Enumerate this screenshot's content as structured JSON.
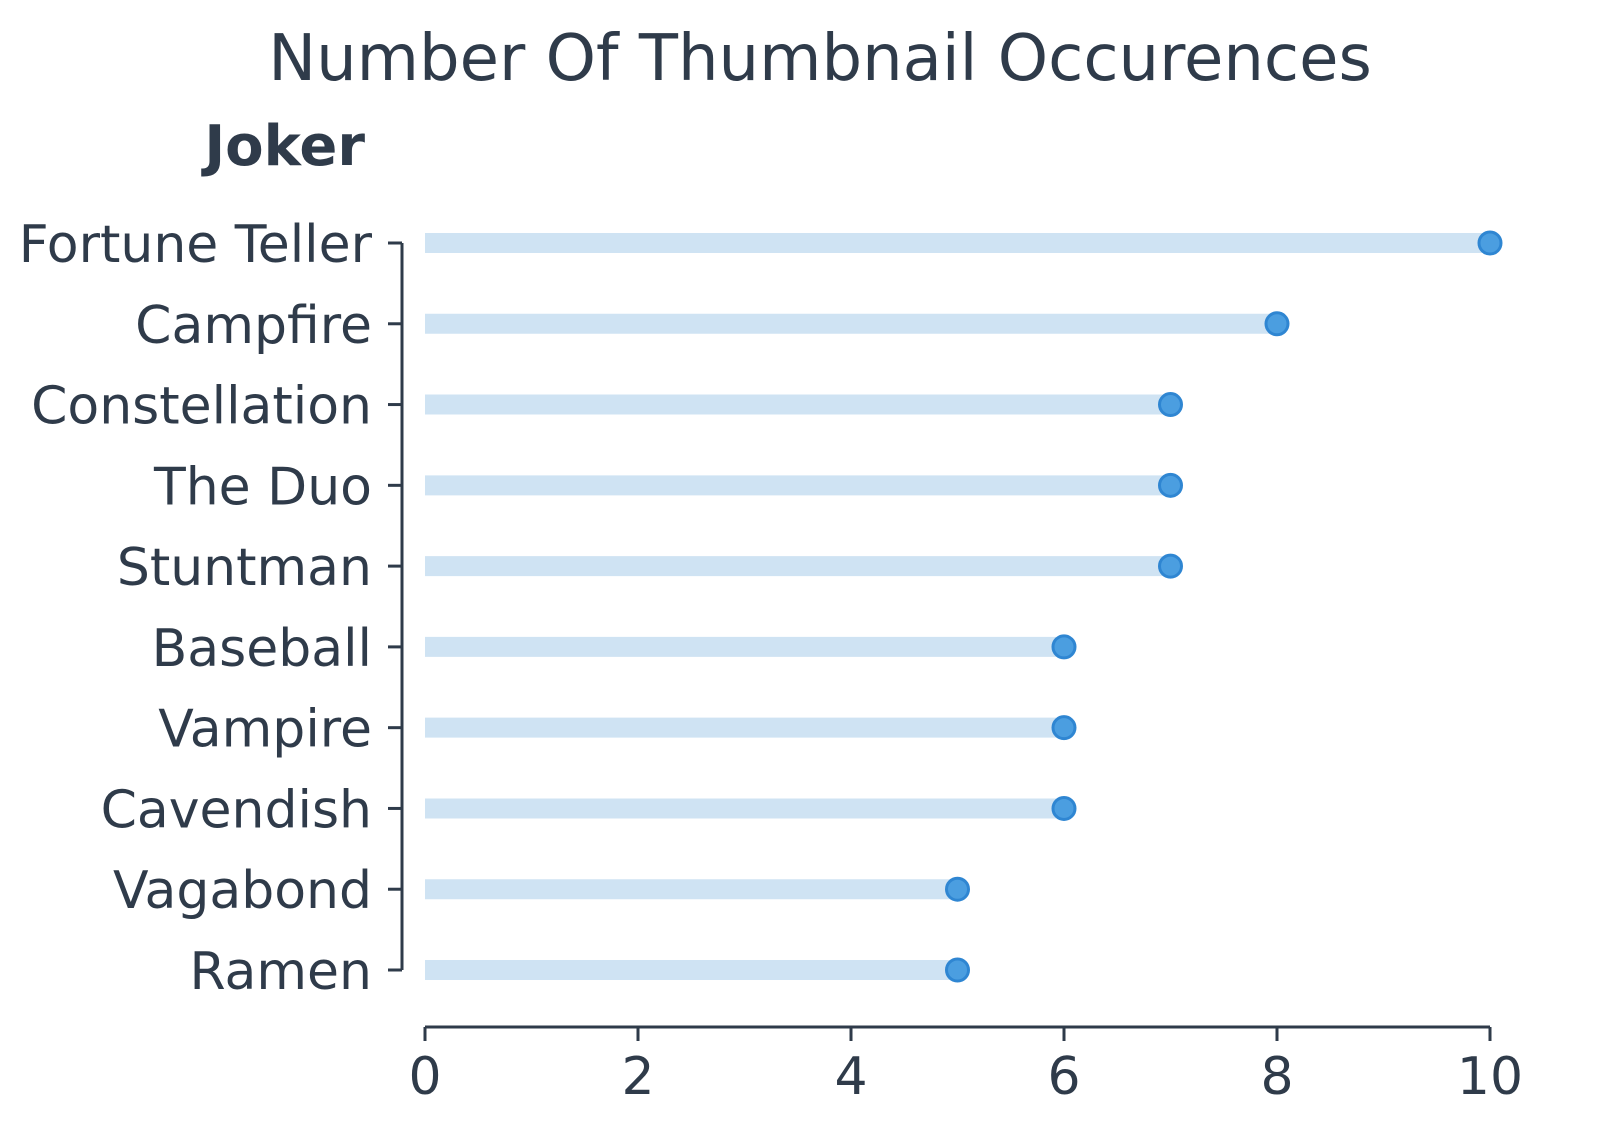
{
  "chart_data": {
    "type": "lollipop",
    "title": "Number Of Thumbnail Occurences",
    "subtitle": "Joker",
    "xlabel": "",
    "ylabel": "",
    "categories": [
      "Fortune Teller",
      "Campfire",
      "Constellation",
      "The Duo",
      "Stuntman",
      "Baseball",
      "Vampire",
      "Cavendish",
      "Vagabond",
      "Ramen"
    ],
    "values": [
      10,
      8,
      7,
      7,
      7,
      6,
      6,
      6,
      5,
      5
    ],
    "xlim": [
      0,
      10
    ],
    "xticks": [
      "0",
      "2",
      "4",
      "6",
      "8",
      "10"
    ],
    "grid": false,
    "colors": {
      "text": "#2f3b4a",
      "stem": "#cfe3f3",
      "marker_fill": "#4b9ee0",
      "marker_edge": "#2f86d2",
      "axis": "#2f3b4a"
    }
  }
}
